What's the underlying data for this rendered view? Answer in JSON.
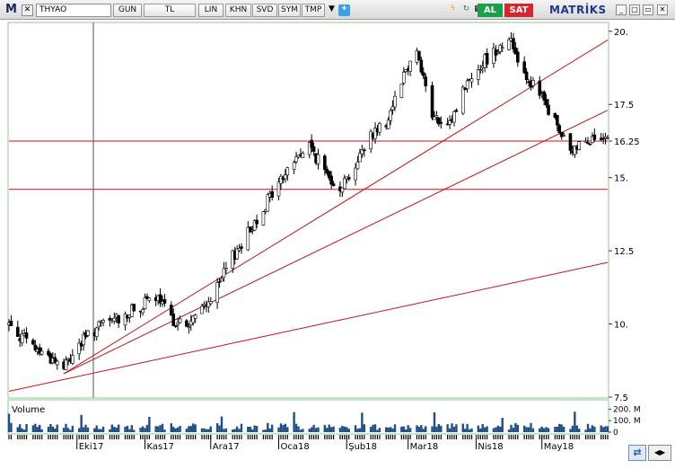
{
  "toolbar": {
    "logo": "M",
    "symbol": "THYAO",
    "period": "GUN",
    "currency": "TL",
    "scale_buttons": [
      "LIN",
      "KHN",
      "SVD",
      "SYM",
      "TMP"
    ],
    "buy_label": "AL",
    "sell_label": "SAT",
    "brand": "MATRİKS",
    "icons": [
      "close-x-icon",
      "twitter-bird-icon",
      "lightning-icon",
      "refresh-icon",
      "grid-icon",
      "minimize-icon",
      "restore-icon",
      "close-icon"
    ],
    "colors": {
      "buy": "#18a04a",
      "sell": "#d8262e",
      "brand": "#1d3b8c"
    }
  },
  "chart_data": {
    "type": "candlestick",
    "symbol": "THYAO",
    "period": "daily",
    "x_tick_labels": [
      "Eki17",
      "Kas17",
      "Ara17",
      "Oca18",
      "Şub18",
      "Mar18",
      "Nis18",
      "May18"
    ],
    "y_tick_labels": [
      "20.",
      "17.5",
      "16.25",
      "15.",
      "12.5",
      "10.",
      "7.5"
    ],
    "ylim": [
      7.5,
      20.3
    ],
    "horizontal_lines": [
      16.25,
      14.6
    ],
    "trend_lines": [
      {
        "from": [
          "2017-09-25",
          8.3
        ],
        "to": [
          "2018-05-31",
          19.7
        ]
      },
      {
        "from": [
          "2017-09-25",
          8.3
        ],
        "to": [
          "2018-05-31",
          17.3
        ]
      },
      {
        "from": [
          "2017-08-31",
          7.7
        ],
        "to": [
          "2018-05-31",
          12.1
        ]
      }
    ],
    "price_path": [
      {
        "date": "2017-08-31",
        "close": 10.0
      },
      {
        "date": "2017-09-04",
        "close": 9.7
      },
      {
        "date": "2017-09-11",
        "close": 9.2
      },
      {
        "date": "2017-09-18",
        "close": 8.9
      },
      {
        "date": "2017-09-25",
        "close": 8.5
      },
      {
        "date": "2017-10-02",
        "close": 9.3
      },
      {
        "date": "2017-10-09",
        "close": 9.8
      },
      {
        "date": "2017-10-16",
        "close": 10.1
      },
      {
        "date": "2017-10-23",
        "close": 10.3
      },
      {
        "date": "2017-10-30",
        "close": 10.6
      },
      {
        "date": "2017-11-06",
        "close": 10.9
      },
      {
        "date": "2017-11-13",
        "close": 10.2
      },
      {
        "date": "2017-11-20",
        "close": 9.9
      },
      {
        "date": "2017-11-27",
        "close": 10.5
      },
      {
        "date": "2017-12-04",
        "close": 11.2
      },
      {
        "date": "2017-12-11",
        "close": 12.3
      },
      {
        "date": "2017-12-18",
        "close": 13.1
      },
      {
        "date": "2017-12-25",
        "close": 14.0
      },
      {
        "date": "2018-01-01",
        "close": 14.8
      },
      {
        "date": "2018-01-08",
        "close": 15.6
      },
      {
        "date": "2018-01-15",
        "close": 16.1
      },
      {
        "date": "2018-01-22",
        "close": 15.2
      },
      {
        "date": "2018-01-29",
        "close": 14.7
      },
      {
        "date": "2018-02-05",
        "close": 15.4
      },
      {
        "date": "2018-02-12",
        "close": 16.5
      },
      {
        "date": "2018-02-19",
        "close": 16.9
      },
      {
        "date": "2018-02-26",
        "close": 18.4
      },
      {
        "date": "2018-03-05",
        "close": 19.4
      },
      {
        "date": "2018-03-12",
        "close": 17.1
      },
      {
        "date": "2018-03-19",
        "close": 16.6
      },
      {
        "date": "2018-03-26",
        "close": 18.0
      },
      {
        "date": "2018-04-02",
        "close": 18.8
      },
      {
        "date": "2018-04-09",
        "close": 19.3
      },
      {
        "date": "2018-04-16",
        "close": 19.8
      },
      {
        "date": "2018-04-23",
        "close": 18.6
      },
      {
        "date": "2018-04-30",
        "close": 17.8
      },
      {
        "date": "2018-05-07",
        "close": 16.9
      },
      {
        "date": "2018-05-14",
        "close": 15.8
      },
      {
        "date": "2018-05-21",
        "close": 16.4
      },
      {
        "date": "2018-05-28",
        "close": 16.2
      }
    ],
    "volume_panel": {
      "title": "Volume",
      "y_tick_labels": [
        "200. M",
        "100. M",
        "0"
      ],
      "ylim": [
        0,
        250
      ]
    },
    "colors": {
      "up": "#ffffff",
      "down": "#000000",
      "support_lines": "#c0141b",
      "volume": "#1f4e8a"
    }
  }
}
